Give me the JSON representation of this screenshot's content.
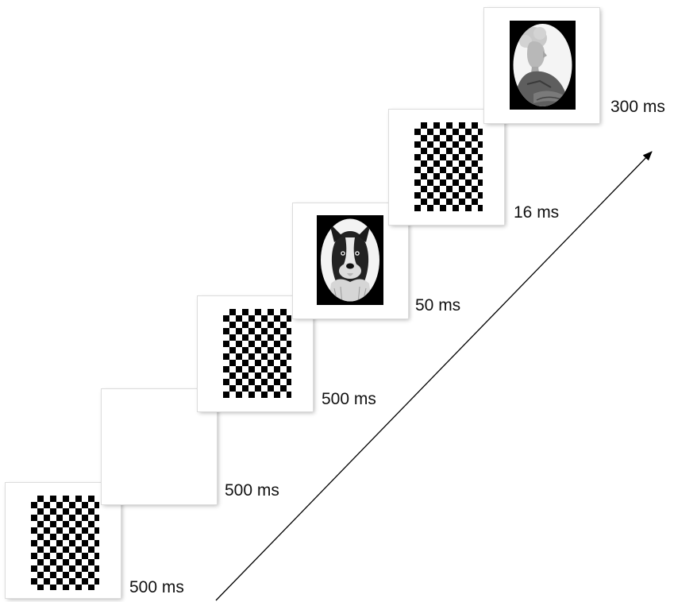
{
  "sequence": [
    {
      "stimulus": "checkerboard",
      "duration": "500 ms"
    },
    {
      "stimulus": "blank",
      "duration": "500 ms"
    },
    {
      "stimulus": "checkerboard",
      "duration": "500 ms"
    },
    {
      "stimulus": "dog-photo",
      "duration": "50 ms"
    },
    {
      "stimulus": "checkerboard",
      "duration": "16 ms"
    },
    {
      "stimulus": "woman-photo",
      "duration": "300 ms"
    }
  ],
  "colors": {
    "frame": "#ffffff",
    "checker": "#000000",
    "photo_background": "#000000",
    "arrow": "#000000"
  }
}
